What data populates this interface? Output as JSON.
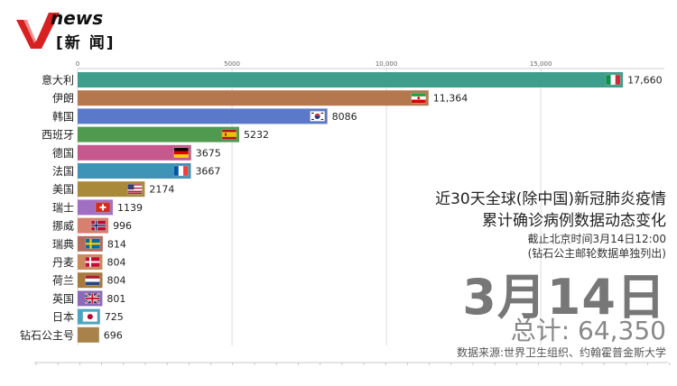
{
  "logo": {
    "brand": "news",
    "subtitle": "[新 闻]"
  },
  "info": {
    "title_line1": "近30天全球(除中国)新冠肺炎疫情",
    "title_line2": "累计确诊病例数据动态变化",
    "note_line1": "截止北京时间3月14日12:00",
    "note_line2": "(钻石公主邮轮数据单独列出)",
    "date": "3月14日",
    "total": "总计: 64,350",
    "source": "数据来源:世界卫生组织、约翰霍普金斯大学"
  },
  "chart_data": {
    "type": "bar",
    "orientation": "horizontal",
    "xlim": [
      0,
      19000
    ],
    "xticks": [
      0,
      5000,
      10000,
      15000
    ],
    "xtick_labels": [
      "0",
      "5000",
      "10,000",
      "15,000"
    ],
    "grid": true,
    "categories": [
      "意大利",
      "伊朗",
      "韩国",
      "西班牙",
      "德国",
      "法国",
      "美国",
      "瑞士",
      "挪威",
      "瑞典",
      "丹麦",
      "荷兰",
      "英国",
      "日本",
      "钻石公主号"
    ],
    "values": [
      17660,
      11364,
      8086,
      5232,
      3675,
      3667,
      2174,
      1139,
      996,
      814,
      804,
      804,
      801,
      725,
      696
    ],
    "value_labels": [
      "17,660",
      "11,364",
      "8086",
      "5232",
      "3675",
      "3667",
      "2174",
      "1139",
      "996",
      "814",
      "804",
      "804",
      "801",
      "725",
      "696"
    ],
    "colors": [
      "#3e9e8c",
      "#b5784e",
      "#5b79c9",
      "#4f9a4f",
      "#c6588d",
      "#3f93b7",
      "#a88a3a",
      "#a06fc4",
      "#d88070",
      "#b46a5e",
      "#cc8a5c",
      "#a77a3e",
      "#8b6ab8",
      "#4aa7c4",
      "#a8824a"
    ],
    "flags": [
      "italy-flag",
      "iran-flag",
      "korea-flag",
      "spain-flag",
      "germany-flag",
      "france-flag",
      "usa-flag",
      "switzerland-flag",
      "norway-flag",
      "sweden-flag",
      "denmark-flag",
      "netherlands-flag",
      "uk-flag",
      "japan-flag",
      ""
    ]
  }
}
